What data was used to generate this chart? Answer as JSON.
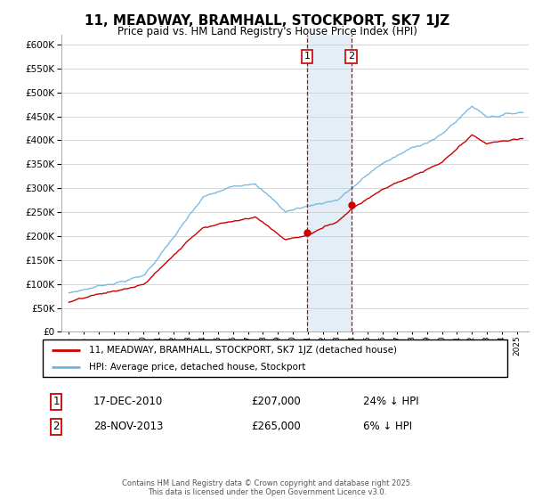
{
  "title": "11, MEADWAY, BRAMHALL, STOCKPORT, SK7 1JZ",
  "subtitle": "Price paid vs. HM Land Registry's House Price Index (HPI)",
  "ylim": [
    0,
    620000
  ],
  "yticks": [
    0,
    50000,
    100000,
    150000,
    200000,
    250000,
    300000,
    350000,
    400000,
    450000,
    500000,
    550000,
    600000
  ],
  "legend_line1": "11, MEADWAY, BRAMHALL, STOCKPORT, SK7 1JZ (detached house)",
  "legend_line2": "HPI: Average price, detached house, Stockport",
  "transaction1_label": "1",
  "transaction1_date": "17-DEC-2010",
  "transaction1_price": "£207,000",
  "transaction1_hpi": "24% ↓ HPI",
  "transaction2_label": "2",
  "transaction2_date": "28-NOV-2013",
  "transaction2_price": "£265,000",
  "transaction2_hpi": "6% ↓ HPI",
  "footer": "Contains HM Land Registry data © Crown copyright and database right 2025.\nThis data is licensed under the Open Government Licence v3.0.",
  "hpi_color": "#6eb5e0",
  "price_color": "#cc0000",
  "vline_color": "#cc0000",
  "transaction1_x": 2010.958,
  "transaction2_x": 2013.91,
  "transaction1_y": 207000,
  "transaction2_y": 265000,
  "highlight_xmin": 2010.958,
  "highlight_xmax": 2013.91,
  "highlight_color": "#dce9f5",
  "xlim_left": 1994.5,
  "xlim_right": 2025.8
}
